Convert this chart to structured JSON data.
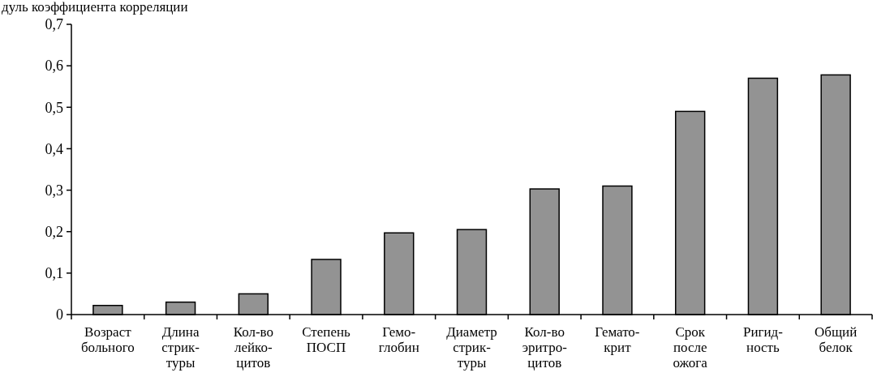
{
  "chart_data": {
    "type": "bar",
    "ylabel": "дуль коэффициента корреляции",
    "categories": [
      "Возраст\nбольного",
      "Длина\nстрик-\nтуры",
      "Кол-во\nлейко-\nцитов",
      "Степень\nПОСП",
      "Гемо-\nглобин",
      "Диаметр\nстрик-\nтуры",
      "Кол-во\nэритро-\nцитов",
      "Гемато-\nкрит",
      "Срок\nпосле\nожога",
      "Ригид-\nность",
      "Общий\nбелок"
    ],
    "values": [
      0.022,
      0.03,
      0.05,
      0.133,
      0.197,
      0.205,
      0.303,
      0.31,
      0.49,
      0.57,
      0.578
    ],
    "color": "#939393",
    "ylim": [
      0,
      0.7
    ],
    "yticks": [
      {
        "value": 0,
        "label": "0"
      },
      {
        "value": 0.1,
        "label": "0,1"
      },
      {
        "value": 0.2,
        "label": "0,2"
      },
      {
        "value": 0.3,
        "label": "0,3"
      },
      {
        "value": 0.4,
        "label": "0,4"
      },
      {
        "value": 0.5,
        "label": "0,5"
      },
      {
        "value": 0.6,
        "label": "0,6"
      },
      {
        "value": 0.7,
        "label": "0,7"
      }
    ],
    "grid": false
  }
}
